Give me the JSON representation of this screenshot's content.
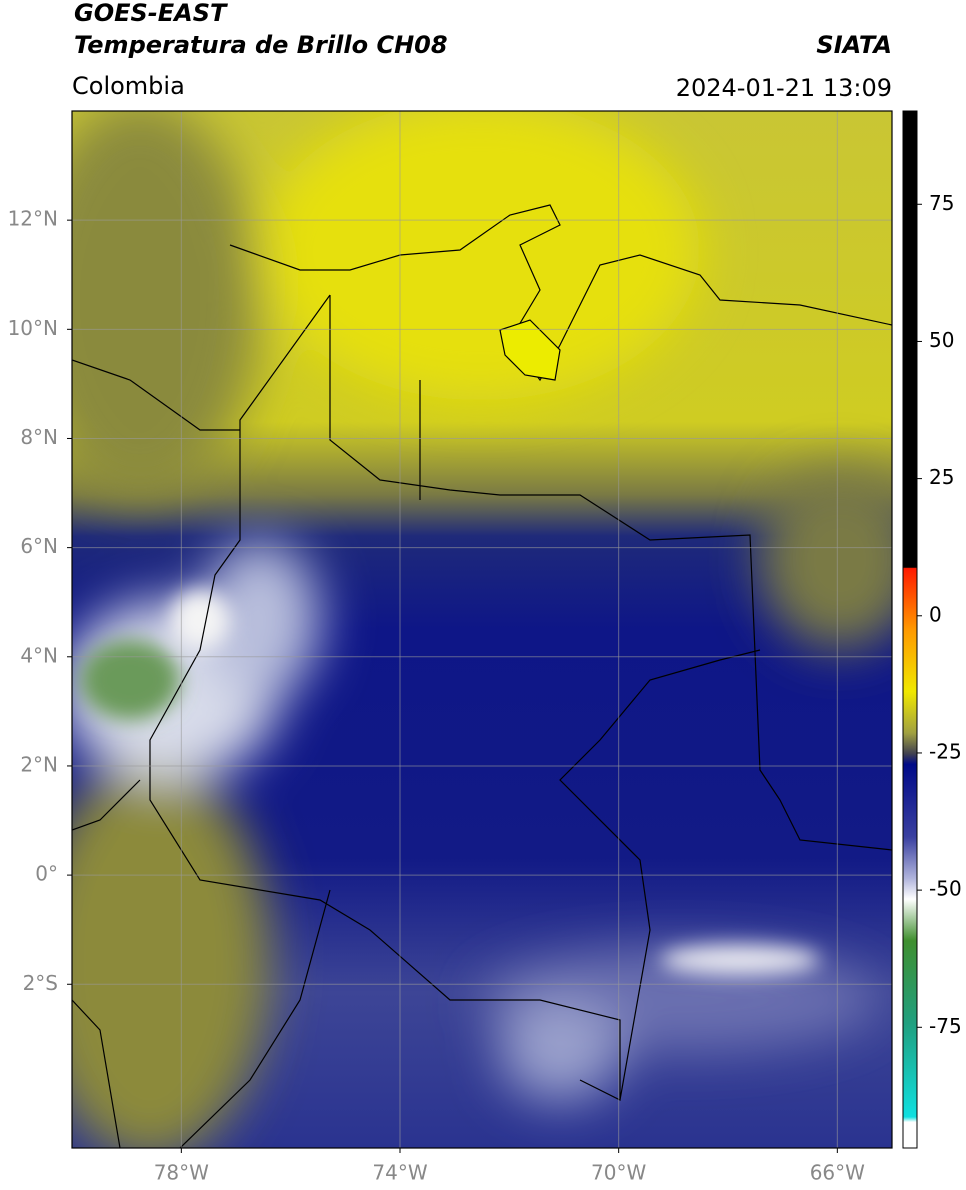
{
  "header": {
    "title": "GOES-EAST",
    "subtitle": "Temperatura de Brillo CH08",
    "region": "Colombia",
    "source": "SIATA",
    "datetime": "2024-01-21 13:09"
  },
  "map": {
    "xlim": [
      -80,
      -65
    ],
    "ylim": [
      -5,
      14
    ],
    "xticks": [
      {
        "value": -78,
        "label": "78°W"
      },
      {
        "value": -74,
        "label": "74°W"
      },
      {
        "value": -70,
        "label": "70°W"
      },
      {
        "value": -66,
        "label": "66°W"
      }
    ],
    "yticks": [
      {
        "value": 12,
        "label": "12°N"
      },
      {
        "value": 10,
        "label": "10°N"
      },
      {
        "value": 8,
        "label": "8°N"
      },
      {
        "value": 6,
        "label": "6°N"
      },
      {
        "value": 4,
        "label": "4°N"
      },
      {
        "value": 2,
        "label": "2°N"
      },
      {
        "value": 0,
        "label": "0°"
      },
      {
        "value": -2,
        "label": "2°S"
      }
    ],
    "grid": true
  },
  "colorbar": {
    "lim": [
      -97,
      92
    ],
    "ticks": [
      75,
      50,
      25,
      0,
      -25,
      -50,
      -75
    ]
  }
}
